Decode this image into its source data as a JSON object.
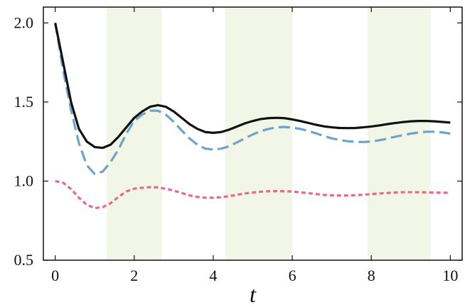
{
  "chart_data": {
    "type": "line",
    "title": "",
    "xlabel": "t",
    "ylabel": "",
    "xlim": [
      -0.3,
      10.3
    ],
    "ylim": [
      0.5,
      2.1
    ],
    "xticks": [
      0,
      2,
      4,
      6,
      8,
      10
    ],
    "xtick_labels": [
      "0",
      "2",
      "4",
      "6",
      "8",
      "10"
    ],
    "yticks": [
      0.5,
      1.0,
      1.5,
      2.0
    ],
    "ytick_labels": [
      "0.5",
      "1.0",
      "1.5",
      "2.0"
    ],
    "grid": false,
    "legend": "none",
    "shaded_x_intervals": [
      [
        1.3,
        2.7
      ],
      [
        4.3,
        6.0
      ],
      [
        7.9,
        9.5
      ]
    ],
    "shade_color": "#f1f6e6",
    "x": [
      0,
      0.2,
      0.4,
      0.6,
      0.8,
      1.0,
      1.2,
      1.4,
      1.6,
      1.8,
      2.0,
      2.2,
      2.4,
      2.6,
      2.8,
      3.0,
      3.2,
      3.4,
      3.6,
      3.8,
      4.0,
      4.2,
      4.4,
      4.6,
      4.8,
      5.0,
      5.2,
      5.4,
      5.6,
      5.8,
      6.0,
      6.2,
      6.4,
      6.6,
      6.8,
      7.0,
      7.2,
      7.4,
      7.6,
      7.8,
      8.0,
      8.2,
      8.4,
      8.6,
      8.8,
      9.0,
      9.2,
      9.4,
      9.6,
      9.8,
      10.0
    ],
    "series": [
      {
        "color": "#111111",
        "style": "solid",
        "values": [
          2.0,
          1.75,
          1.5,
          1.33,
          1.25,
          1.215,
          1.21,
          1.23,
          1.28,
          1.34,
          1.4,
          1.44,
          1.47,
          1.48,
          1.47,
          1.44,
          1.4,
          1.36,
          1.33,
          1.31,
          1.305,
          1.31,
          1.325,
          1.345,
          1.365,
          1.38,
          1.392,
          1.398,
          1.4,
          1.398,
          1.39,
          1.38,
          1.368,
          1.356,
          1.346,
          1.34,
          1.336,
          1.335,
          1.336,
          1.34,
          1.345,
          1.352,
          1.36,
          1.367,
          1.373,
          1.378,
          1.38,
          1.38,
          1.378,
          1.374,
          1.37
        ]
      },
      {
        "color": "#6fa3cc",
        "style": "dashed",
        "values": [
          2.0,
          1.7,
          1.45,
          1.24,
          1.1,
          1.045,
          1.06,
          1.12,
          1.2,
          1.3,
          1.38,
          1.42,
          1.445,
          1.445,
          1.42,
          1.375,
          1.32,
          1.27,
          1.23,
          1.205,
          1.2,
          1.205,
          1.22,
          1.245,
          1.27,
          1.295,
          1.315,
          1.33,
          1.34,
          1.342,
          1.338,
          1.33,
          1.318,
          1.302,
          1.285,
          1.27,
          1.26,
          1.252,
          1.248,
          1.247,
          1.25,
          1.258,
          1.268,
          1.28,
          1.29,
          1.3,
          1.308,
          1.312,
          1.312,
          1.308,
          1.3
        ]
      },
      {
        "color": "#e8688e",
        "style": "dotted",
        "values": [
          1.0,
          0.99,
          0.95,
          0.895,
          0.85,
          0.83,
          0.835,
          0.86,
          0.9,
          0.935,
          0.952,
          0.958,
          0.962,
          0.96,
          0.952,
          0.94,
          0.925,
          0.91,
          0.9,
          0.895,
          0.895,
          0.898,
          0.905,
          0.914,
          0.922,
          0.928,
          0.933,
          0.936,
          0.937,
          0.936,
          0.934,
          0.929,
          0.924,
          0.918,
          0.913,
          0.91,
          0.909,
          0.909,
          0.911,
          0.914,
          0.918,
          0.922,
          0.925,
          0.928,
          0.93,
          0.93,
          0.93,
          0.929,
          0.928,
          0.927,
          0.925
        ]
      }
    ]
  }
}
